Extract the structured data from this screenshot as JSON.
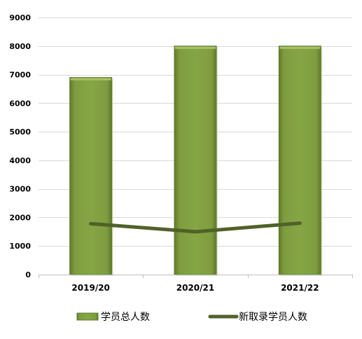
{
  "chart_data": {
    "type": "bar",
    "categories": [
      "2019/20",
      "2020/21",
      "2021/22"
    ],
    "series": [
      {
        "name": "学员总人数",
        "kind": "bar",
        "values": [
          6900,
          8000,
          8000
        ],
        "color": "#7f9d3f"
      },
      {
        "name": "新取录学员人数",
        "kind": "line",
        "values": [
          1780,
          1500,
          1800
        ],
        "color": "#4f6228"
      }
    ],
    "yticks": [
      "0",
      "1000",
      "2000",
      "3000",
      "4000",
      "5000",
      "6000",
      "7000",
      "8000",
      "9000"
    ],
    "ylim": [
      0,
      9000
    ],
    "grid": true,
    "legend": "bottom"
  }
}
